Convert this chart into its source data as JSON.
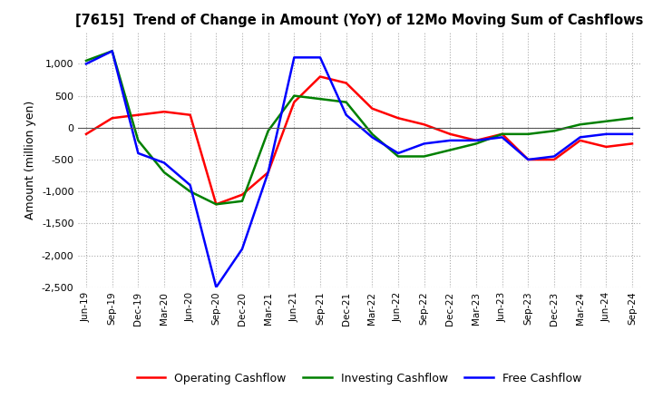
{
  "title": "[7615]  Trend of Change in Amount (YoY) of 12Mo Moving Sum of Cashflows",
  "ylabel": "Amount (million yen)",
  "ylim": [
    -2500,
    1500
  ],
  "yticks": [
    -2500,
    -2000,
    -1500,
    -1000,
    -500,
    0,
    500,
    1000
  ],
  "background_color": "#ffffff",
  "grid_color": "#aaaaaa",
  "labels": [
    "Jun-19",
    "Sep-19",
    "Dec-19",
    "Mar-20",
    "Jun-20",
    "Sep-20",
    "Dec-20",
    "Mar-21",
    "Jun-21",
    "Sep-21",
    "Dec-21",
    "Mar-22",
    "Jun-22",
    "Sep-22",
    "Dec-22",
    "Mar-23",
    "Jun-23",
    "Sep-23",
    "Dec-23",
    "Mar-24",
    "Jun-24",
    "Sep-24"
  ],
  "operating": [
    -100,
    150,
    200,
    250,
    200,
    -1200,
    -1050,
    -700,
    400,
    800,
    700,
    300,
    150,
    50,
    -100,
    -200,
    -100,
    -500,
    -500,
    -200,
    -300,
    -250
  ],
  "investing": [
    1050,
    1200,
    -200,
    -700,
    -1000,
    -1200,
    -1150,
    -50,
    500,
    450,
    400,
    -100,
    -450,
    -450,
    -350,
    -250,
    -100,
    -100,
    -50,
    50,
    100,
    150
  ],
  "free": [
    1000,
    1200,
    -400,
    -550,
    -900,
    -2500,
    -1900,
    -700,
    1100,
    1100,
    200,
    -150,
    -400,
    -250,
    -200,
    -200,
    -150,
    -500,
    -450,
    -150,
    -100,
    -100
  ],
  "op_color": "#ff0000",
  "inv_color": "#008000",
  "free_color": "#0000ff",
  "legend_labels": [
    "Operating Cashflow",
    "Investing Cashflow",
    "Free Cashflow"
  ]
}
